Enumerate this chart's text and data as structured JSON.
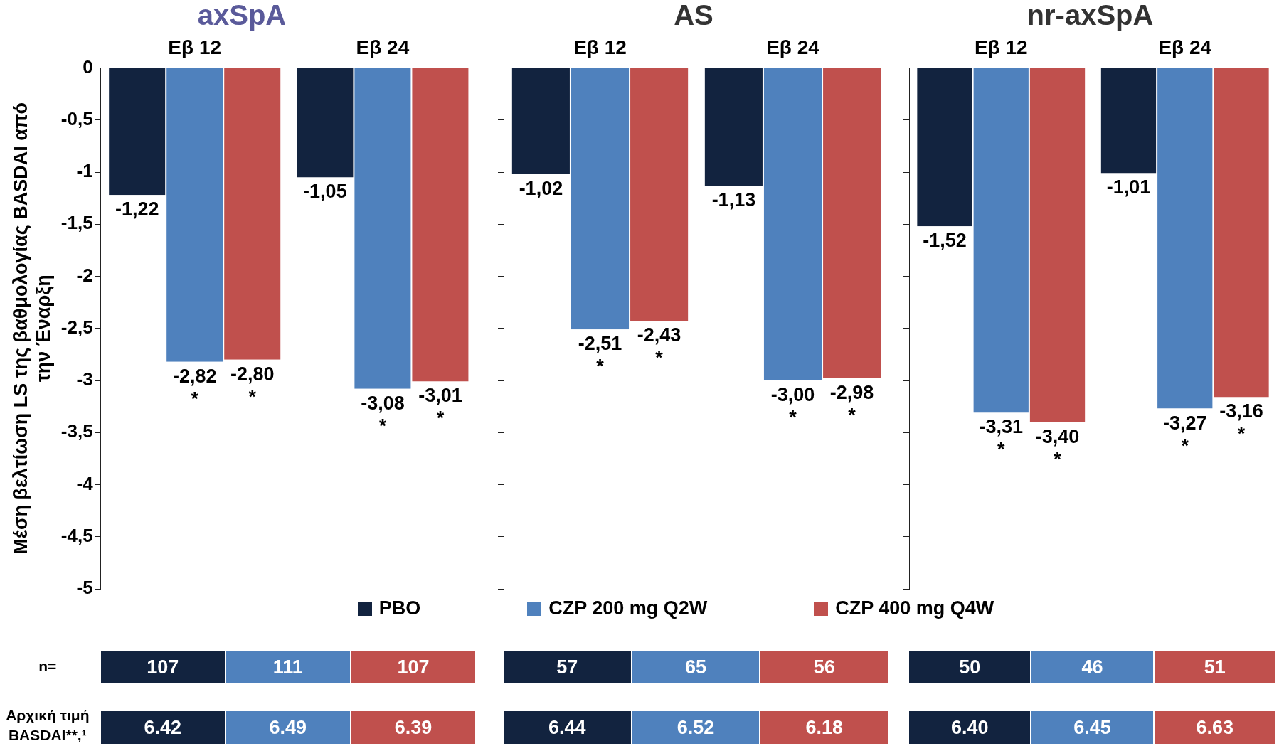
{
  "chart_data": [
    {
      "type": "bar",
      "title": "axSpA",
      "ylabel": "Μέση βελτίωση LS της βαθμολογίας BASDAI από την Έναρξη",
      "categories": [
        "Εβ 12",
        "Εβ 24"
      ],
      "series": [
        {
          "color": "#12233f",
          "values": [
            -1.22,
            -1.05
          ],
          "value_labels": [
            "-1,22",
            "-1,05"
          ]
        },
        {
          "color": "#4f81bd",
          "values": [
            -2.82,
            -3.08
          ],
          "value_labels": [
            "-2,82\n*",
            "-3,08\n*"
          ]
        },
        {
          "color": "#c0504d",
          "values": [
            -2.8,
            -3.01
          ],
          "value_labels": [
            "-2,80\n*",
            "-3,01\n*"
          ]
        }
      ],
      "ylim": [
        -5,
        0
      ],
      "yticks": [
        0,
        {
          "value": -0.5,
          "label": "-0,5"
        },
        -1,
        {
          "value": -1.5,
          "label": "-1,5"
        },
        -2,
        {
          "value": -2.5,
          "label": "-2,5"
        },
        -3,
        {
          "value": -3.5,
          "label": "-3,5"
        },
        -4,
        {
          "value": -4.5,
          "label": "-4,5"
        },
        -5
      ],
      "annotations": [
        "n=",
        "Αρχική τιμή BASDAI**,¹",
        "107",
        "111",
        "107",
        "6.42",
        "6.49",
        "6.39"
      ]
    },
    {
      "type": "bar",
      "title": "AS",
      "categories": [
        "Εβ 12",
        "Εβ 24"
      ],
      "legend": "bottom",
      "tick_labels": "x",
      "series": [
        {
          "name": "PBO",
          "color": "#12233f",
          "values": [
            -1.02,
            -1.13
          ],
          "value_labels": [
            "-1,02",
            "-1,13"
          ]
        },
        {
          "name": "CZP 200 mg Q2W",
          "color": "#4f81bd",
          "values": [
            -2.51,
            -3.0
          ],
          "value_labels": [
            "-2,51\n*",
            "-3,00\n*"
          ]
        },
        {
          "name": "CZP 400 mg Q4W",
          "color": "#c0504d",
          "values": [
            -2.43,
            -2.98
          ],
          "value_labels": [
            "-2,43\n*",
            "-2,98\n*"
          ]
        }
      ],
      "ylim": [
        -5,
        0
      ],
      "yticks": [
        0,
        -0.5,
        -1,
        -1.5,
        -2,
        -2.5,
        -3,
        -3.5,
        -4,
        -4.5,
        -5
      ],
      "annotations": [
        "57",
        "65",
        "56",
        "6.44",
        "6.52",
        "6.18"
      ]
    },
    {
      "type": "bar",
      "title": "nr-axSpA",
      "categories": [
        "Εβ 12",
        "Εβ 24"
      ],
      "tick_labels": "x",
      "series": [
        {
          "color": "#12233f",
          "values": [
            -1.52,
            -1.01
          ],
          "value_labels": [
            "-1,52",
            "-1,01"
          ]
        },
        {
          "color": "#4f81bd",
          "values": [
            -3.31,
            -3.27
          ],
          "value_labels": [
            "-3,31\n*",
            "-3,27\n*"
          ]
        },
        {
          "color": "#c0504d",
          "values": [
            -3.4,
            -3.16
          ],
          "value_labels": [
            "-3,40\n*",
            "-3,16\n*"
          ]
        }
      ],
      "ylim": [
        -5,
        0
      ],
      "yticks": [
        0,
        -0.5,
        -1,
        -1.5,
        -2,
        -2.5,
        -3,
        -3.5,
        -4,
        -4.5,
        -5
      ],
      "annotations": [
        "50",
        "46",
        "51",
        "6.40",
        "6.45",
        "6.63"
      ]
    }
  ]
}
